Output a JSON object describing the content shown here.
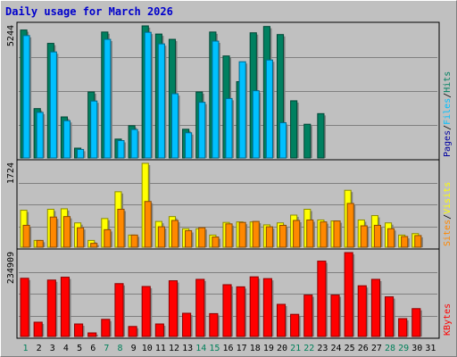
{
  "title": "Daily usage for March 2026",
  "chart_data": [
    {
      "type": "bar",
      "panel": "hits-files-pages",
      "categories": [
        "1",
        "2",
        "3",
        "4",
        "5",
        "6",
        "7",
        "8",
        "9",
        "10",
        "11",
        "12",
        "13",
        "14",
        "15",
        "16",
        "17",
        "18",
        "19",
        "20",
        "21",
        "22",
        "23",
        "24",
        "25",
        "26",
        "27",
        "28",
        "29",
        "30",
        "31"
      ],
      "ymax_label": "5244",
      "ylim": [
        0,
        5244
      ],
      "legend": [
        "Pages",
        "Files",
        "Hits"
      ],
      "series": [
        {
          "name": "Hits",
          "color": "#008060",
          "values": [
            5080,
            1960,
            4550,
            1630,
            390,
            2620,
            5000,
            750,
            1280,
            5244,
            4920,
            4710,
            1140,
            2620,
            5000,
            4050,
            3030,
            4970,
            5220,
            4900,
            2270,
            1340,
            1760,
            0,
            0,
            0,
            0,
            0,
            0,
            0,
            0
          ]
        },
        {
          "name": "Files",
          "color": "#00c0ff",
          "values": [
            4860,
            1810,
            4210,
            1480,
            340,
            2260,
            4710,
            690,
            1130,
            4990,
            4530,
            2550,
            1000,
            2210,
            4640,
            2360,
            3820,
            2670,
            3890,
            1400,
            0,
            0,
            0,
            0,
            0,
            0,
            0,
            0,
            0,
            0,
            0
          ]
        },
        {
          "name": "Pages",
          "color": "#0000a0",
          "values": [
            0,
            0,
            0,
            0,
            0,
            0,
            0,
            0,
            0,
            0,
            0,
            0,
            0,
            0,
            0,
            0,
            0,
            0,
            0,
            0,
            0,
            0,
            0,
            0,
            0,
            0,
            0,
            0,
            0,
            0,
            0
          ]
        }
      ]
    },
    {
      "type": "bar",
      "panel": "visits-sites",
      "categories": [
        "1",
        "2",
        "3",
        "4",
        "5",
        "6",
        "7",
        "8",
        "9",
        "10",
        "11",
        "12",
        "13",
        "14",
        "15",
        "16",
        "17",
        "18",
        "19",
        "20",
        "21",
        "22",
        "23",
        "24",
        "25",
        "26",
        "27",
        "28",
        "29",
        "30",
        "31"
      ],
      "ymax_label": "1724",
      "ylim": [
        0,
        1724
      ],
      "legend": [
        "Sites",
        "Visits"
      ],
      "series": [
        {
          "name": "Visits",
          "color": "#ffff00",
          "values": [
            760,
            140,
            780,
            790,
            500,
            140,
            590,
            1140,
            250,
            1724,
            530,
            630,
            380,
            380,
            250,
            510,
            520,
            520,
            460,
            500,
            660,
            780,
            560,
            540,
            1170,
            560,
            650,
            500,
            250,
            280,
            0
          ]
        },
        {
          "name": "Sites",
          "color": "#ff8800",
          "values": [
            450,
            140,
            620,
            630,
            400,
            80,
            360,
            780,
            250,
            940,
            420,
            550,
            340,
            400,
            210,
            480,
            510,
            530,
            420,
            450,
            550,
            560,
            520,
            540,
            900,
            440,
            450,
            380,
            220,
            240,
            0
          ]
        }
      ]
    },
    {
      "type": "bar",
      "panel": "kbytes",
      "categories": [
        "1",
        "2",
        "3",
        "4",
        "5",
        "6",
        "7",
        "8",
        "9",
        "10",
        "11",
        "12",
        "13",
        "14",
        "15",
        "16",
        "17",
        "18",
        "19",
        "20",
        "21",
        "22",
        "23",
        "24",
        "25",
        "26",
        "27",
        "28",
        "29",
        "30",
        "31"
      ],
      "ymax_label": "234909",
      "ylim": [
        0,
        234909
      ],
      "legend": [
        "KBytes"
      ],
      "series": [
        {
          "name": "KBytes",
          "color": "#ff0000",
          "values": [
            163000,
            40000,
            158000,
            166000,
            35000,
            10000,
            48000,
            148000,
            28000,
            140000,
            35000,
            156000,
            65000,
            160000,
            64000,
            145000,
            139000,
            167000,
            162000,
            90000,
            62000,
            116000,
            211000,
            116000,
            234909,
            142000,
            160000,
            111000,
            50000,
            78000,
            0
          ]
        }
      ]
    }
  ],
  "x_axis": {
    "labels": [
      "1",
      "2",
      "3",
      "4",
      "5",
      "6",
      "7",
      "8",
      "9",
      "10",
      "11",
      "12",
      "13",
      "14",
      "15",
      "16",
      "17",
      "18",
      "19",
      "20",
      "21",
      "22",
      "23",
      "24",
      "25",
      "26",
      "27",
      "28",
      "29",
      "30",
      "31"
    ],
    "weekend_days": [
      1,
      7,
      8,
      14,
      15,
      21,
      22,
      28,
      29
    ],
    "weekday_color": "#000000",
    "weekend_color": "#00805a"
  },
  "colors": {
    "background": "#c0c0c0",
    "plot_background": "#c0c0c0",
    "title": "#0000cc",
    "gridline": "#808080"
  }
}
